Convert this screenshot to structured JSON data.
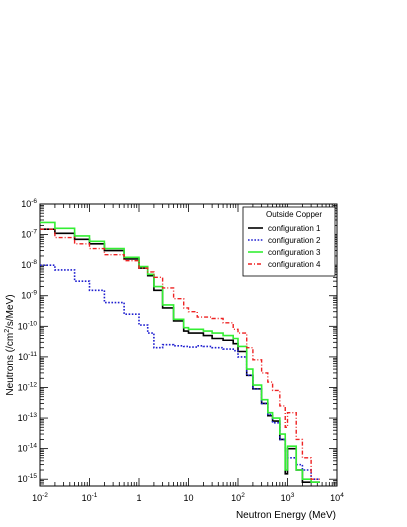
{
  "chart_data": {
    "type": "line",
    "step": true,
    "xscale": "log",
    "yscale": "log",
    "xlim": [
      0.01,
      10000
    ],
    "ylim": [
      6e-16,
      1e-06
    ],
    "xlabel": "Neutron Energy (MeV)",
    "ylabel_parts": [
      "Neutrons (/cm",
      "2",
      "/s/MeV)"
    ],
    "grid": false,
    "legend": {
      "title": "Outside Copper",
      "position": "top-right"
    },
    "x_ticks": [
      {
        "base": "10",
        "exp": "-2",
        "value": 0.01
      },
      {
        "base": "10",
        "exp": "-1",
        "value": 0.1
      },
      {
        "base": "1",
        "exp": "",
        "value": 1
      },
      {
        "base": "10",
        "exp": "",
        "value": 10
      },
      {
        "base": "10",
        "exp": "2",
        "value": 100
      },
      {
        "base": "10",
        "exp": "3",
        "value": 1000
      },
      {
        "base": "10",
        "exp": "4",
        "value": 10000
      }
    ],
    "y_ticks": [
      {
        "base": "10",
        "exp": "-15",
        "value": 1e-15
      },
      {
        "base": "10",
        "exp": "-14",
        "value": 1e-14
      },
      {
        "base": "10",
        "exp": "-13",
        "value": 1e-13
      },
      {
        "base": "10",
        "exp": "-12",
        "value": 1e-12
      },
      {
        "base": "10",
        "exp": "-11",
        "value": 1e-11
      },
      {
        "base": "10",
        "exp": "-10",
        "value": 1e-10
      },
      {
        "base": "10",
        "exp": "-9",
        "value": 1e-09
      },
      {
        "base": "10",
        "exp": "-8",
        "value": 1e-08
      },
      {
        "base": "10",
        "exp": "-7",
        "value": 1e-07
      },
      {
        "base": "10",
        "exp": "-6",
        "value": 1e-06
      }
    ],
    "series": [
      {
        "name": "configuration 1",
        "color": "#000000",
        "dash": "solid",
        "width": 1.6,
        "x": [
          0.01,
          0.02,
          0.05,
          0.1,
          0.2,
          0.5,
          1,
          1.5,
          2,
          3,
          5,
          8,
          10,
          15,
          20,
          30,
          50,
          80,
          100,
          150,
          200,
          300,
          400,
          500,
          700,
          900,
          1000,
          1500,
          2000,
          3000
        ],
        "y": [
          1.5e-07,
          1.1e-07,
          7e-08,
          5e-08,
          3e-08,
          1.6e-08,
          8e-09,
          4.5e-09,
          1.5e-09,
          4e-10,
          1.5e-10,
          7e-11,
          6e-11,
          6e-11,
          5e-11,
          4e-11,
          3.5e-11,
          2.7e-11,
          1.5e-11,
          2.5e-12,
          9e-13,
          3e-13,
          1.2e-13,
          8e-14,
          2e-14,
          1.5e-15,
          1e-14,
          2e-15,
          8e-16,
          8e-16
        ]
      },
      {
        "name": "configuration 2",
        "color": "#1f1fd0",
        "dash": "dot",
        "width": 1.6,
        "x": [
          0.01,
          0.02,
          0.05,
          0.1,
          0.2,
          0.5,
          1,
          1.5,
          2,
          3,
          5,
          8,
          10,
          15,
          20,
          30,
          50,
          80,
          100,
          150,
          200,
          300,
          400,
          500,
          700,
          900,
          1000,
          1500,
          2000,
          3000
        ],
        "y": [
          1e-08,
          7e-09,
          3e-09,
          1.5e-09,
          6e-10,
          2.5e-10,
          1.1e-10,
          6e-11,
          2e-11,
          2.5e-11,
          2.3e-11,
          2.2e-11,
          2.1e-11,
          2.3e-11,
          2.2e-11,
          2e-11,
          1.8e-11,
          1.6e-11,
          1e-11,
          2.5e-12,
          9e-13,
          3e-13,
          1.3e-13,
          7e-14,
          2e-14,
          8e-15,
          5e-15,
          3e-15,
          2e-15,
          1e-15
        ]
      },
      {
        "name": "configuration 3",
        "color": "#33ee33",
        "dash": "solid",
        "width": 1.6,
        "x": [
          0.01,
          0.02,
          0.05,
          0.1,
          0.2,
          0.5,
          1,
          1.5,
          2,
          3,
          5,
          8,
          10,
          15,
          20,
          30,
          50,
          80,
          100,
          150,
          200,
          300,
          400,
          500,
          700,
          900,
          1000,
          1500,
          2000,
          3000
        ],
        "y": [
          2.5e-07,
          1.6e-07,
          9e-08,
          6e-08,
          3.5e-08,
          1.8e-08,
          9e-09,
          5e-09,
          2e-09,
          5e-10,
          1.7e-10,
          9e-11,
          8e-11,
          8e-11,
          7e-11,
          6e-11,
          5e-11,
          4e-11,
          2.2e-11,
          4e-12,
          1.2e-12,
          4e-13,
          1.5e-13,
          1e-13,
          3e-14,
          2e-15,
          1.2e-14,
          2e-15,
          1e-15,
          8e-16
        ]
      },
      {
        "name": "configuration 4",
        "color": "#ee2222",
        "dash": "dashdot",
        "width": 1.4,
        "x": [
          0.01,
          0.02,
          0.05,
          0.1,
          0.2,
          0.5,
          1,
          1.5,
          2,
          3,
          5,
          8,
          10,
          15,
          20,
          30,
          50,
          80,
          100,
          150,
          200,
          300,
          400,
          500,
          700,
          900,
          1000,
          1500,
          2000,
          3000
        ],
        "y": [
          1.5e-07,
          8e-08,
          5e-08,
          3.5e-08,
          2.2e-08,
          1.4e-08,
          8e-09,
          6e-09,
          4e-09,
          1.8e-09,
          8e-10,
          4e-10,
          3e-10,
          2e-10,
          2e-10,
          1.8e-10,
          1.3e-10,
          8e-11,
          6e-11,
          2e-11,
          8e-12,
          3e-12,
          1.5e-12,
          8e-13,
          2.5e-13,
          5e-14,
          1.5e-13,
          2e-14,
          5e-15,
          1e-15
        ]
      }
    ]
  }
}
